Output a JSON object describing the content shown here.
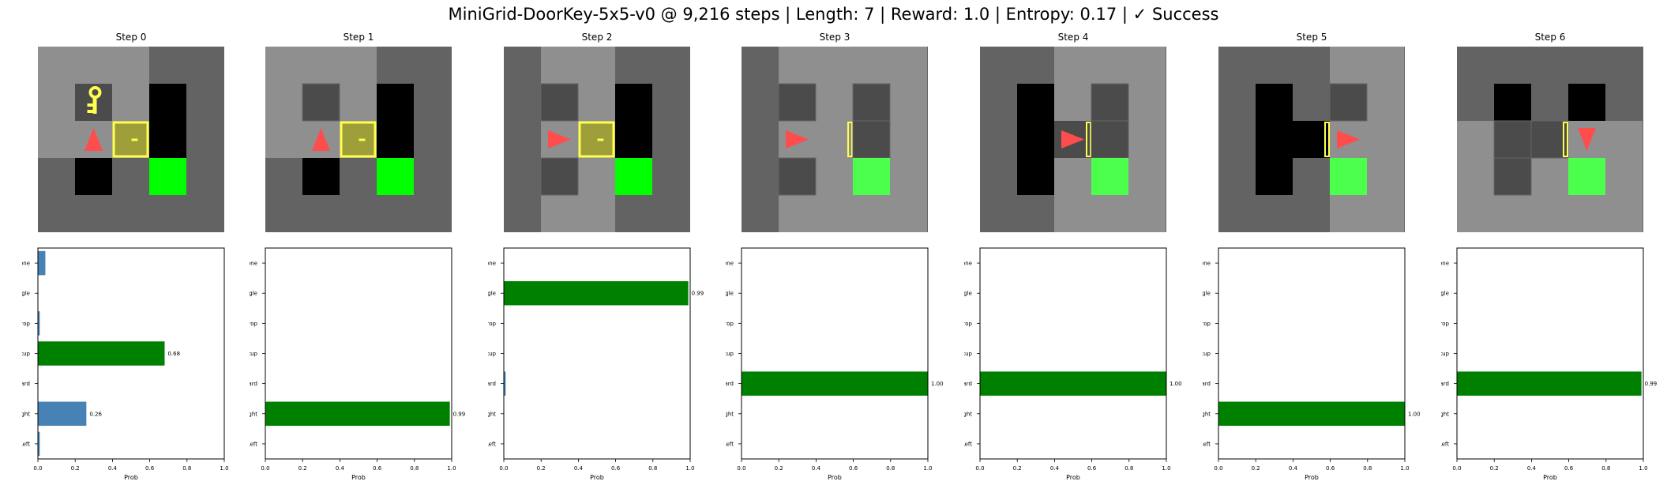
{
  "suptitle": "MiniGrid-DoorKey-5x5-v0 @ 9,216 steps | Length: 7 | Reward: 1.0 | Entropy: 0.17 | ✓ Success",
  "colors": {
    "floor_visible": "#8f8f8f",
    "floor_hidden": "#636363",
    "wall": "#4b4b4b",
    "unseen": "#000000",
    "goal": "#00ff00",
    "goal_dim": "#4dff4d",
    "agent": "#ff4d4d",
    "key": "#ffff4d",
    "door": "#ffff4d",
    "door_fill": "#9e9e3a",
    "bar_default": "#4682b4",
    "bar_chosen": "#008000"
  },
  "icons": [
    "agent-triangle-icon",
    "key-icon",
    "door-icon",
    "goal-square-icon"
  ],
  "steps": [
    {
      "title": "Step 0",
      "grid": {
        "visible_region": [
          [
            0,
            0,
            3,
            3
          ]
        ],
        "cells": [
          {
            "r": 1,
            "c": 1,
            "t": "key"
          },
          {
            "r": 1,
            "c": 3,
            "t": "unseen"
          },
          {
            "r": 2,
            "c": 1,
            "t": "agent",
            "dir": "up"
          },
          {
            "r": 2,
            "c": 2,
            "t": "door",
            "state": "locked"
          },
          {
            "r": 2,
            "c": 3,
            "t": "unseen"
          },
          {
            "r": 3,
            "c": 1,
            "t": "unseen"
          },
          {
            "r": 3,
            "c": 3,
            "t": "goal"
          }
        ]
      }
    },
    {
      "title": "Step 1",
      "grid": {
        "visible_region": [
          [
            0,
            0,
            3,
            3
          ]
        ],
        "cells": [
          {
            "r": 1,
            "c": 1,
            "t": "wall"
          },
          {
            "r": 1,
            "c": 3,
            "t": "unseen"
          },
          {
            "r": 2,
            "c": 1,
            "t": "agent",
            "dir": "up"
          },
          {
            "r": 2,
            "c": 2,
            "t": "door",
            "state": "locked"
          },
          {
            "r": 2,
            "c": 3,
            "t": "unseen"
          },
          {
            "r": 3,
            "c": 1,
            "t": "unseen"
          },
          {
            "r": 3,
            "c": 3,
            "t": "goal"
          }
        ]
      }
    },
    {
      "title": "Step 2",
      "grid": {
        "visible_region": [
          [
            1,
            0,
            3,
            5
          ]
        ],
        "cells": [
          {
            "r": 1,
            "c": 1,
            "t": "wall"
          },
          {
            "r": 1,
            "c": 3,
            "t": "unseen"
          },
          {
            "r": 2,
            "c": 1,
            "t": "agent",
            "dir": "right"
          },
          {
            "r": 2,
            "c": 2,
            "t": "door",
            "state": "locked"
          },
          {
            "r": 2,
            "c": 3,
            "t": "unseen"
          },
          {
            "r": 3,
            "c": 1,
            "t": "wall"
          },
          {
            "r": 3,
            "c": 3,
            "t": "goal"
          }
        ]
      }
    },
    {
      "title": "Step 3",
      "grid": {
        "visible_region": [
          [
            1,
            0,
            5,
            5
          ]
        ],
        "cells": [
          {
            "r": 1,
            "c": 1,
            "t": "wall"
          },
          {
            "r": 1,
            "c": 3,
            "t": "wall"
          },
          {
            "r": 2,
            "c": 1,
            "t": "agent",
            "dir": "right"
          },
          {
            "r": 2,
            "c": 2,
            "t": "door",
            "state": "open"
          },
          {
            "r": 2,
            "c": 3,
            "t": "wall"
          },
          {
            "r": 3,
            "c": 1,
            "t": "wall"
          },
          {
            "r": 3,
            "c": 3,
            "t": "goal_dim"
          }
        ]
      }
    },
    {
      "title": "Step 4",
      "grid": {
        "visible_region": [
          [
            2,
            0,
            5,
            5
          ]
        ],
        "cells": [
          {
            "r": 1,
            "c": 1,
            "t": "unseen"
          },
          {
            "r": 1,
            "c": 3,
            "t": "wall"
          },
          {
            "r": 2,
            "c": 1,
            "t": "unseen"
          },
          {
            "r": 2,
            "c": 2,
            "t": "agent",
            "dir": "right",
            "with_door": true
          },
          {
            "r": 2,
            "c": 3,
            "t": "wall"
          },
          {
            "r": 3,
            "c": 1,
            "t": "unseen"
          },
          {
            "r": 3,
            "c": 3,
            "t": "goal_dim"
          }
        ]
      }
    },
    {
      "title": "Step 5",
      "grid": {
        "visible_region": [
          [
            3,
            0,
            5,
            5
          ]
        ],
        "cells": [
          {
            "r": 1,
            "c": 1,
            "t": "unseen"
          },
          {
            "r": 1,
            "c": 3,
            "t": "wall"
          },
          {
            "r": 2,
            "c": 1,
            "t": "unseen"
          },
          {
            "r": 2,
            "c": 2,
            "t": "unseen",
            "with_door": true
          },
          {
            "r": 2,
            "c": 3,
            "t": "agent",
            "dir": "right"
          },
          {
            "r": 3,
            "c": 1,
            "t": "unseen"
          },
          {
            "r": 3,
            "c": 3,
            "t": "goal_dim"
          }
        ]
      }
    },
    {
      "title": "Step 6",
      "grid": {
        "visible_region": [
          [
            0,
            2,
            5,
            5
          ]
        ],
        "cells": [
          {
            "r": 1,
            "c": 1,
            "t": "unseen"
          },
          {
            "r": 1,
            "c": 3,
            "t": "unseen"
          },
          {
            "r": 2,
            "c": 1,
            "t": "wall"
          },
          {
            "r": 2,
            "c": 2,
            "t": "wall",
            "with_door": true
          },
          {
            "r": 2,
            "c": 3,
            "t": "agent",
            "dir": "down"
          },
          {
            "r": 3,
            "c": 1,
            "t": "wall"
          },
          {
            "r": 3,
            "c": 3,
            "t": "goal_dim"
          }
        ]
      }
    }
  ],
  "chart_data": [
    {
      "type": "bar",
      "orientation": "horizontal",
      "title": "Step 0",
      "categories": [
        "Left",
        "Right",
        "Forward",
        "Pickup",
        "Drop",
        "Toggle",
        "Done"
      ],
      "values": [
        0.01,
        0.26,
        0.0,
        0.68,
        0.01,
        0.0,
        0.04
      ],
      "chosen": "Pickup",
      "labeled": {
        "Right": "0.26",
        "Pickup": "0.68"
      },
      "xlabel": "Prob",
      "xlim": [
        0,
        1
      ],
      "xticks": [
        "0.0",
        "0.2",
        "0.4",
        "0.6",
        "0.8",
        "1.0"
      ]
    },
    {
      "type": "bar",
      "orientation": "horizontal",
      "title": "Step 1",
      "categories": [
        "Left",
        "Right",
        "Forward",
        "Pickup",
        "Drop",
        "Toggle",
        "Done"
      ],
      "values": [
        0.0,
        0.99,
        0.0,
        0.0,
        0.0,
        0.0,
        0.0
      ],
      "chosen": "Right",
      "labeled": {
        "Right": "0.99"
      },
      "xlabel": "Prob",
      "xlim": [
        0,
        1
      ],
      "xticks": [
        "0.0",
        "0.2",
        "0.4",
        "0.6",
        "0.8",
        "1.0"
      ]
    },
    {
      "type": "bar",
      "orientation": "horizontal",
      "title": "Step 2",
      "categories": [
        "Left",
        "Right",
        "Forward",
        "Pickup",
        "Drop",
        "Toggle",
        "Done"
      ],
      "values": [
        0.0,
        0.0,
        0.01,
        0.0,
        0.0,
        0.99,
        0.0
      ],
      "chosen": "Toggle",
      "labeled": {
        "Toggle": "0.99"
      },
      "xlabel": "Prob",
      "xlim": [
        0,
        1
      ],
      "xticks": [
        "0.0",
        "0.2",
        "0.4",
        "0.6",
        "0.8",
        "1.0"
      ]
    },
    {
      "type": "bar",
      "orientation": "horizontal",
      "title": "Step 3",
      "categories": [
        "Left",
        "Right",
        "Forward",
        "Pickup",
        "Drop",
        "Toggle",
        "Done"
      ],
      "values": [
        0.0,
        0.0,
        1.0,
        0.0,
        0.0,
        0.0,
        0.0
      ],
      "chosen": "Forward",
      "labeled": {
        "Forward": "1.00"
      },
      "xlabel": "Prob",
      "xlim": [
        0,
        1
      ],
      "xticks": [
        "0.0",
        "0.2",
        "0.4",
        "0.6",
        "0.8",
        "1.0"
      ]
    },
    {
      "type": "bar",
      "orientation": "horizontal",
      "title": "Step 4",
      "categories": [
        "Left",
        "Right",
        "Forward",
        "Pickup",
        "Drop",
        "Toggle",
        "Done"
      ],
      "values": [
        0.0,
        0.0,
        1.0,
        0.0,
        0.0,
        0.0,
        0.0
      ],
      "chosen": "Forward",
      "labeled": {
        "Forward": "1.00"
      },
      "xlabel": "Prob",
      "xlim": [
        0,
        1
      ],
      "xticks": [
        "0.0",
        "0.2",
        "0.4",
        "0.6",
        "0.8",
        "1.0"
      ]
    },
    {
      "type": "bar",
      "orientation": "horizontal",
      "title": "Step 5",
      "categories": [
        "Left",
        "Right",
        "Forward",
        "Pickup",
        "Drop",
        "Toggle",
        "Done"
      ],
      "values": [
        0.0,
        1.0,
        0.0,
        0.0,
        0.0,
        0.0,
        0.0
      ],
      "chosen": "Right",
      "labeled": {
        "Right": "1.00"
      },
      "xlabel": "Prob",
      "xlim": [
        0,
        1
      ],
      "xticks": [
        "0.0",
        "0.2",
        "0.4",
        "0.6",
        "0.8",
        "1.0"
      ]
    },
    {
      "type": "bar",
      "orientation": "horizontal",
      "title": "Step 6",
      "categories": [
        "Left",
        "Right",
        "Forward",
        "Pickup",
        "Drop",
        "Toggle",
        "Done"
      ],
      "values": [
        0.0,
        0.0,
        0.99,
        0.0,
        0.0,
        0.0,
        0.0
      ],
      "chosen": "Forward",
      "labeled": {
        "Forward": "0.99"
      },
      "xlabel": "Prob",
      "xlim": [
        0,
        1
      ],
      "xticks": [
        "0.0",
        "0.2",
        "0.4",
        "0.6",
        "0.8",
        "1.0"
      ]
    }
  ]
}
